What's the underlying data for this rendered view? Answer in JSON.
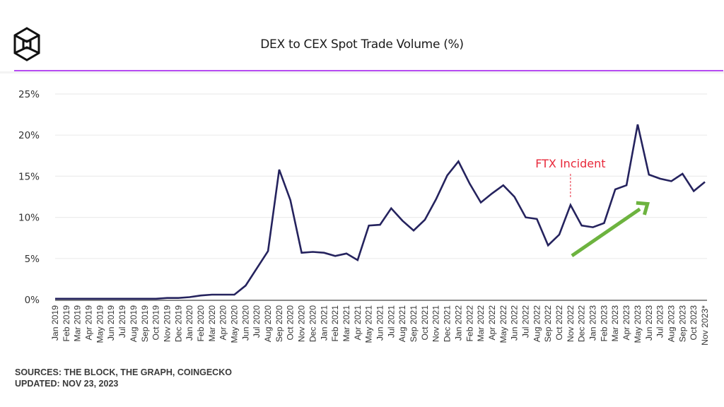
{
  "header": {
    "logo_icon": "cube-logo-icon",
    "title": "DEX to CEX Spot Trade Volume (%)"
  },
  "footer": {
    "sources": "SOURCES: THE BLOCK, THE GRAPH, COINGECKO",
    "updated": "UPDATED: NOV 23, 2023"
  },
  "colors": {
    "line": "#25235e",
    "accent_rule": "#b64cf2",
    "annotation": "#e8283a",
    "arrow": "#6db33f",
    "grid": "#ececec"
  },
  "chart_data": {
    "type": "line",
    "title": "DEX to CEX Spot Trade Volume (%)",
    "xlabel": "",
    "ylabel": "",
    "ylim": [
      0,
      25
    ],
    "yticks": [
      0,
      5,
      10,
      15,
      20,
      25
    ],
    "ytick_labels": [
      "0%",
      "5%",
      "10%",
      "15%",
      "20%",
      "25%"
    ],
    "grid": true,
    "legend": "none",
    "categories": [
      "Jan 2019",
      "Feb 2019",
      "Mar 2019",
      "Apr 2019",
      "May 2019",
      "Jun 2019",
      "Jul 2019",
      "Aug 2019",
      "Sep 2019",
      "Oct 2019",
      "Nov 2019",
      "Dec 2019",
      "Jan 2020",
      "Feb 2020",
      "Mar 2020",
      "Apr 2020",
      "May 2020",
      "Jun 2020",
      "Jul 2020",
      "Aug 2020",
      "Sep 2020",
      "Oct 2020",
      "Nov 2020",
      "Dec 2020",
      "Jan 2021",
      "Feb 2021",
      "Mar 2021",
      "Apr 2021",
      "May 2021",
      "Jun 2021",
      "Jul 2021",
      "Aug 2021",
      "Sep 2021",
      "Oct 2021",
      "Nov 2021",
      "Dec 2021",
      "Jan 2022",
      "Feb 2022",
      "Mar 2022",
      "Apr 2022",
      "May 2022",
      "Jun 2022",
      "Jul 2022",
      "Aug 2022",
      "Sep 2022",
      "Oct 2022",
      "Nov 2022",
      "Dec 2022",
      "Jan 2023",
      "Feb 2023",
      "Mar 2023",
      "Apr 2023",
      "May 2023",
      "Jun 2023",
      "Jul 2023",
      "Aug 2023",
      "Sep 2023",
      "Oct 2023",
      "Nov 2023*"
    ],
    "series": [
      {
        "name": "DEX to CEX Spot Trade Volume (%)",
        "values": [
          0.1,
          0.1,
          0.1,
          0.1,
          0.1,
          0.1,
          0.1,
          0.1,
          0.1,
          0.1,
          0.2,
          0.2,
          0.3,
          0.5,
          0.6,
          0.6,
          0.6,
          1.7,
          3.8,
          5.9,
          15.8,
          12.1,
          5.7,
          5.8,
          5.7,
          5.3,
          5.6,
          4.8,
          9.0,
          9.1,
          11.1,
          9.6,
          8.4,
          9.7,
          12.2,
          15.1,
          16.8,
          14.1,
          11.8,
          12.9,
          13.9,
          12.5,
          10.0,
          9.8,
          6.6,
          7.9,
          11.5,
          9.0,
          8.8,
          9.3,
          13.4,
          13.9,
          21.3,
          15.2,
          14.7,
          14.4,
          15.3,
          13.2,
          14.3
        ]
      }
    ],
    "annotations": [
      {
        "text": "FTX Incident",
        "category": "Nov 2022",
        "type": "dashed-marker"
      },
      {
        "text": "",
        "type": "trend-arrow",
        "from": {
          "category": "Nov 2022",
          "value": 5.5
        },
        "to": {
          "category": "Jun 2023",
          "value": 12.5
        }
      }
    ]
  }
}
